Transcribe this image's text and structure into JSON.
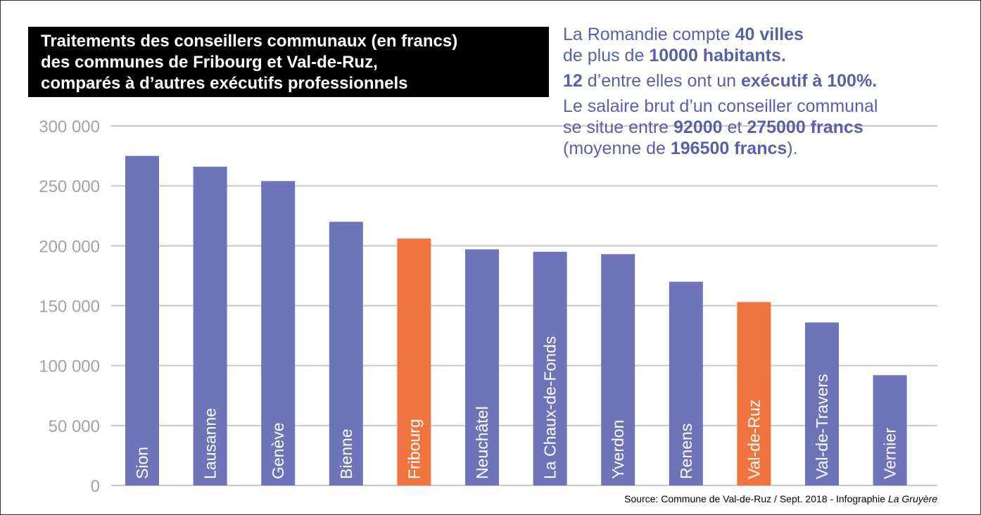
{
  "title_lines": [
    "Traitements des conseillers communaux (en francs)",
    "des communes de Fribourg et Val-de-Ruz,",
    "comparés à d’autres exécutifs professionnels"
  ],
  "info": {
    "line1_pre": "La Romandie compte ",
    "line1_bold": "40 villes",
    "line2_pre": "de plus de ",
    "line2_bold": "10000 habitants.",
    "line3_bold_a": "12",
    "line3_mid": " d’entre elles ont un ",
    "line3_bold_b": "exécutif à 100%.",
    "line4": "Le salaire brut d’un conseiller communal",
    "line5_pre": "se situe entre ",
    "line5_bold_a": "92000",
    "line5_mid": " et ",
    "line5_bold_b": "275000 francs",
    "line6_pre": "(moyenne de ",
    "line6_bold": "196500 francs",
    "line6_post": ")."
  },
  "source": {
    "text": "Source: Commune de Val-de-Ruz / Sept. 2018 - Infographie ",
    "italic": "La Gruyère"
  },
  "colors": {
    "default_bar": "#6f73b9",
    "highlight_bar": "#f07440",
    "grid": "#c9c9c9",
    "tick_text": "#a3a3a3",
    "info_text": "#5b5fa8"
  },
  "chart_data": {
    "type": "bar",
    "title": "Traitements des conseillers communaux (en francs) des communes de Fribourg et Val-de-Ruz, comparés à d’autres exécutifs professionnels",
    "categories": [
      "Sion",
      "Lausanne",
      "Genève",
      "Bienne",
      "Fribourg",
      "Neuchâtel",
      "La Chaux-de-Fonds",
      "Yverdon",
      "Renens",
      "Val-de-Ruz",
      "Val-de-Travers",
      "Vernier"
    ],
    "values": [
      275000,
      266000,
      254000,
      220000,
      206000,
      197000,
      195000,
      193000,
      170000,
      153000,
      136000,
      92000
    ],
    "highlighted": [
      "Fribourg",
      "Val-de-Ruz"
    ],
    "ylim": [
      0,
      300000
    ],
    "yticks": [
      0,
      50000,
      100000,
      150000,
      200000,
      250000,
      300000
    ],
    "ytick_labels": [
      "0",
      "50 000",
      "100 000",
      "150 000",
      "200 000",
      "250 000",
      "300 000"
    ],
    "grid": true,
    "xlabel": "",
    "ylabel": ""
  }
}
